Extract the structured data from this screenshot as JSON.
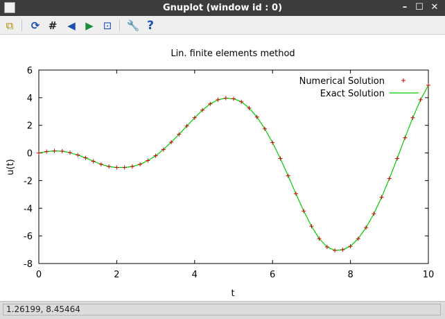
{
  "window": {
    "title": "Gnuplot (window id : 0)"
  },
  "window_controls": {
    "minimize": "–",
    "maximize": "☐",
    "close": "✕"
  },
  "toolbar": {
    "items": [
      {
        "name": "copy-to-clipboard",
        "glyph": "⧉"
      },
      {
        "name": "replot",
        "glyph": "⟳"
      },
      {
        "name": "grid",
        "glyph": "#"
      },
      {
        "name": "previous-zoom",
        "glyph": "◀"
      },
      {
        "name": "next-zoom",
        "glyph": "▶"
      },
      {
        "name": "autoscale",
        "glyph": "⊡"
      },
      {
        "name": "options",
        "glyph": "🔧"
      },
      {
        "name": "help",
        "glyph": "?"
      }
    ]
  },
  "status": {
    "coords": "1.26199,  8.45464"
  },
  "chart_data": {
    "type": "line",
    "title": "Lin. finite elements method",
    "xlabel": "t",
    "ylabel": "u(t)",
    "xlim": [
      0,
      10
    ],
    "ylim": [
      -8,
      6
    ],
    "xticks": [
      0,
      2,
      4,
      6,
      8,
      10
    ],
    "yticks": [
      -8,
      -6,
      -4,
      -2,
      0,
      2,
      4,
      6
    ],
    "grid": false,
    "legend_position": "top-right",
    "series": [
      {
        "name": "Numerical Solution",
        "style": "points",
        "marker": "+",
        "color": "#cc0000",
        "x": [
          0,
          0.2,
          0.4,
          0.6,
          0.8,
          1,
          1.2,
          1.4,
          1.6,
          1.8,
          2,
          2.2,
          2.4,
          2.6,
          2.8,
          3,
          3.2,
          3.4,
          3.6,
          3.8,
          4,
          4.2,
          4.4,
          4.6,
          4.8,
          5,
          5.2,
          5.4,
          5.6,
          5.8,
          6,
          6.2,
          6.4,
          6.6,
          6.8,
          7,
          7.2,
          7.4,
          7.6,
          7.8,
          8,
          8.2,
          8.4,
          8.6,
          8.8,
          9,
          9.2,
          9.4,
          9.6,
          9.8,
          10
        ],
        "y": [
          0,
          0.1,
          0.15,
          0.13,
          0.02,
          -0.15,
          -0.35,
          -0.6,
          -0.82,
          -0.98,
          -1.05,
          -1.05,
          -0.98,
          -0.82,
          -0.55,
          -0.2,
          0.25,
          0.78,
          1.35,
          1.95,
          2.55,
          3.1,
          3.55,
          3.85,
          3.97,
          3.92,
          3.7,
          3.25,
          2.6,
          1.75,
          0.75,
          -0.4,
          -1.65,
          -2.95,
          -4.2,
          -5.3,
          -6.2,
          -6.8,
          -7.05,
          -7.0,
          -6.75,
          -6.2,
          -5.4,
          -4.4,
          -3.2,
          -1.85,
          -0.4,
          1.1,
          2.55,
          3.85,
          4.9
        ]
      },
      {
        "name": "Exact Solution",
        "style": "line",
        "color": "#00cc00",
        "x": [
          0,
          0.2,
          0.4,
          0.6,
          0.8,
          1,
          1.2,
          1.4,
          1.6,
          1.8,
          2,
          2.2,
          2.4,
          2.6,
          2.8,
          3,
          3.2,
          3.4,
          3.6,
          3.8,
          4,
          4.2,
          4.4,
          4.6,
          4.8,
          5,
          5.2,
          5.4,
          5.6,
          5.8,
          6,
          6.2,
          6.4,
          6.6,
          6.8,
          7,
          7.2,
          7.4,
          7.6,
          7.8,
          8,
          8.2,
          8.4,
          8.6,
          8.8,
          9,
          9.2,
          9.4,
          9.6,
          9.8,
          10
        ],
        "y": [
          0,
          0.1,
          0.15,
          0.13,
          0.02,
          -0.15,
          -0.35,
          -0.6,
          -0.82,
          -0.98,
          -1.05,
          -1.05,
          -0.98,
          -0.82,
          -0.55,
          -0.2,
          0.25,
          0.78,
          1.35,
          1.95,
          2.55,
          3.1,
          3.55,
          3.85,
          3.97,
          3.92,
          3.7,
          3.25,
          2.6,
          1.75,
          0.75,
          -0.4,
          -1.65,
          -2.95,
          -4.2,
          -5.3,
          -6.2,
          -6.8,
          -7.05,
          -7.0,
          -6.75,
          -6.2,
          -5.4,
          -4.4,
          -3.2,
          -1.85,
          -0.4,
          1.1,
          2.55,
          3.85,
          4.9
        ]
      }
    ]
  }
}
